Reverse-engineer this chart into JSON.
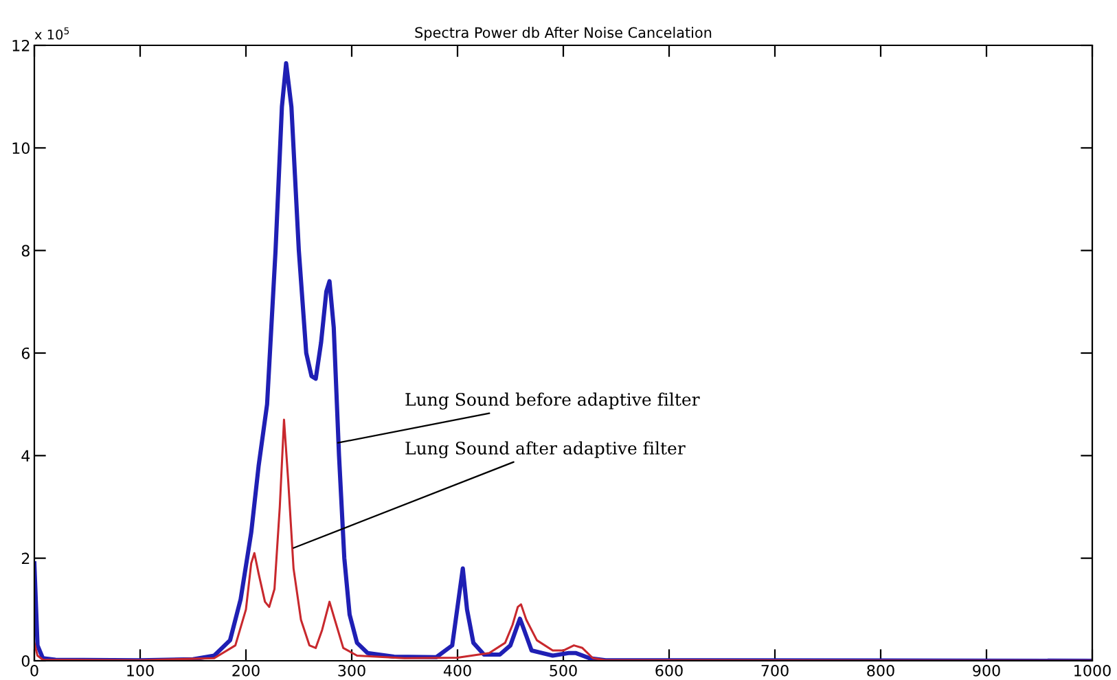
{
  "chart_data": {
    "type": "line",
    "title": "Spectra Power db After Noise Cancelation",
    "xlim": [
      0,
      1000
    ],
    "xticks": [
      0,
      100,
      200,
      300,
      400,
      500,
      600,
      700,
      800,
      900,
      1000
    ],
    "ylim": [
      0,
      12
    ],
    "yticks": [
      0,
      2,
      4,
      6,
      8,
      10,
      12
    ],
    "grid": false,
    "legend": false,
    "series": [
      {
        "color": "#1f1fb4",
        "x": [
          0,
          3,
          8,
          20,
          100,
          150,
          170,
          185,
          195,
          205,
          212,
          220,
          228,
          234,
          238,
          243,
          250,
          257,
          262,
          266,
          271,
          276,
          279,
          283,
          288,
          293,
          298,
          305,
          315,
          340,
          380,
          395,
          401,
          405,
          409,
          415,
          425,
          440,
          450,
          456,
          459,
          463,
          470,
          490,
          505,
          512,
          525,
          540,
          1000
        ],
        "values": [
          1.9,
          0.3,
          0.05,
          0.02,
          0.01,
          0.03,
          0.1,
          0.4,
          1.2,
          2.5,
          3.8,
          5,
          8,
          10.8,
          11.65,
          10.8,
          8,
          6,
          5.55,
          5.5,
          6.2,
          7.2,
          7.4,
          6.5,
          4,
          2,
          0.9,
          0.35,
          0.15,
          0.08,
          0.07,
          0.3,
          1.2,
          1.8,
          1.0,
          0.35,
          0.12,
          0.12,
          0.3,
          0.65,
          0.82,
          0.6,
          0.2,
          0.1,
          0.15,
          0.15,
          0.05,
          0.01,
          0
        ]
      },
      {
        "color": "#c8282d",
        "x": [
          0,
          3,
          8,
          100,
          170,
          190,
          200,
          205,
          208,
          212,
          218,
          222,
          227,
          232,
          236,
          240,
          245,
          252,
          260,
          266,
          272,
          279,
          284,
          292,
          305,
          350,
          400,
          430,
          445,
          452,
          457,
          460,
          465,
          475,
          490,
          500,
          510,
          518,
          528,
          540,
          1000
        ],
        "values": [
          0.35,
          0.1,
          0.02,
          0.01,
          0.05,
          0.3,
          1.0,
          1.9,
          2.1,
          1.7,
          1.15,
          1.05,
          1.4,
          3,
          4.7,
          3.5,
          1.8,
          0.8,
          0.3,
          0.25,
          0.6,
          1.15,
          0.8,
          0.25,
          0.1,
          0.05,
          0.06,
          0.15,
          0.35,
          0.7,
          1.05,
          1.1,
          0.8,
          0.4,
          0.2,
          0.2,
          0.3,
          0.25,
          0.05,
          0.01,
          0
        ]
      }
    ],
    "annotations": [
      "x 10$^{5}$",
      {
        "text": "Lung Sound before adaptive filter",
        "x": 287,
        "y": 4.25
      },
      {
        "text": "Lung Sound after adaptive filter",
        "x": 245,
        "y": 2.2
      }
    ]
  }
}
